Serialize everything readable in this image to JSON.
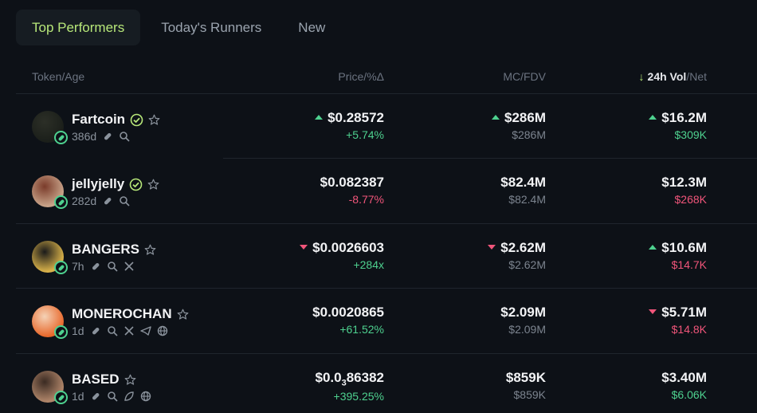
{
  "tabs": [
    "Top Performers",
    "Today's Runners",
    "New"
  ],
  "active_tab": 0,
  "header": {
    "token_age": "Token/Age",
    "price": "Price/%Δ",
    "mc_fdv": "MC/FDV",
    "vol_active": "24h Vol",
    "vol_net": "/Net"
  },
  "rows": [
    {
      "name": "Fartcoin",
      "verified": true,
      "age": "386d",
      "icons": [
        "pill-icon",
        "search-icon"
      ],
      "avatar_colors": [
        "#1b1f1a",
        "#2c2f27"
      ],
      "price": "$0.28572",
      "price_dir": "up",
      "change": "+5.74%",
      "change_color": "green",
      "mc": "$286M",
      "mc_dir": "up",
      "fdv": "$286M",
      "vol": "$16.2M",
      "vol_dir": "up",
      "net": "$309K",
      "net_color": "green"
    },
    {
      "name": "jellyjelly",
      "verified": true,
      "age": "282d",
      "icons": [
        "pill-icon",
        "search-icon"
      ],
      "avatar_colors": [
        "#c9a48a",
        "#7a3b2a"
      ],
      "price": "$0.082387",
      "price_dir": "",
      "change": "-8.77%",
      "change_color": "red",
      "mc": "$82.4M",
      "mc_dir": "",
      "fdv": "$82.4M",
      "vol": "$12.3M",
      "vol_dir": "",
      "net": "$268K",
      "net_color": "red"
    },
    {
      "name": "BANGERS",
      "verified": false,
      "age": "7h",
      "icons": [
        "pill-icon",
        "search-icon",
        "x-icon"
      ],
      "avatar_colors": [
        "#d9b24a",
        "#1a1a1a"
      ],
      "price": "$0.0026603",
      "price_dir": "down",
      "change": "+284x",
      "change_color": "green",
      "mc": "$2.62M",
      "mc_dir": "down",
      "fdv": "$2.62M",
      "vol": "$10.6M",
      "vol_dir": "up",
      "net": "$14.7K",
      "net_color": "red"
    },
    {
      "name": "MONEROCHAN",
      "verified": false,
      "age": "1d",
      "icons": [
        "pill-icon",
        "search-icon",
        "x-icon",
        "telegram-icon",
        "globe-icon"
      ],
      "avatar_colors": [
        "#e8692c",
        "#f4d2b6"
      ],
      "price": "$0.0020865",
      "price_dir": "",
      "change": "+61.52%",
      "change_color": "green",
      "mc": "$2.09M",
      "mc_dir": "",
      "fdv": "$2.09M",
      "vol": "$5.71M",
      "vol_dir": "down",
      "net": "$14.8K",
      "net_color": "red"
    },
    {
      "name": "BASED",
      "verified": false,
      "age": "1d",
      "icons": [
        "pill-icon",
        "search-icon",
        "leaf-icon",
        "globe-icon"
      ],
      "avatar_colors": [
        "#b0866a",
        "#3a2a22"
      ],
      "price_prefix": "$0.0",
      "price_sub": "3",
      "price_rest": "86382",
      "price_dir": "",
      "change": "+395.25%",
      "change_color": "green",
      "mc": "$859K",
      "mc_dir": "",
      "fdv": "$859K",
      "vol": "$3.40M",
      "vol_dir": "",
      "net": "$6.06K",
      "net_color": "green"
    }
  ]
}
